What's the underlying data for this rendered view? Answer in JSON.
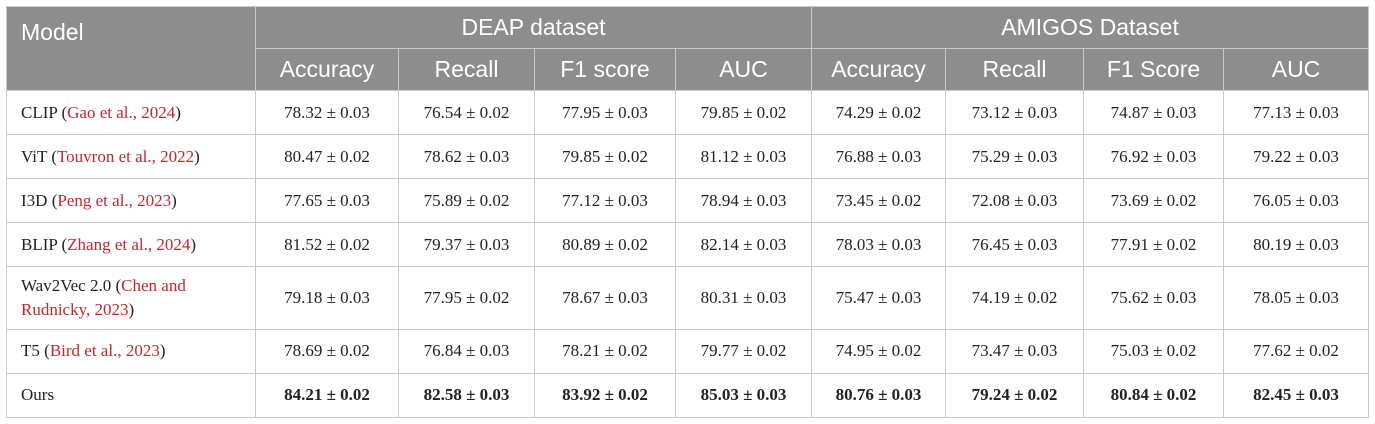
{
  "header": {
    "model": "Model",
    "groups": [
      "DEAP dataset",
      "AMIGOS Dataset"
    ],
    "metrics": [
      "Accuracy",
      "Recall",
      "F1 score",
      "AUC",
      "Accuracy",
      "Recall",
      "F1 Score",
      "AUC"
    ]
  },
  "rows": [
    {
      "name": "CLIP",
      "cite": "Gao et al., 2024",
      "close": ")",
      "values": [
        "78.32 ± 0.03",
        "76.54 ± 0.02",
        "77.95 ± 0.03",
        "79.85 ± 0.02",
        "74.29 ± 0.02",
        "73.12 ± 0.03",
        "74.87 ± 0.03",
        "77.13 ± 0.03"
      ]
    },
    {
      "name": "ViT",
      "cite": "Touvron et al., 2022",
      "close": ")",
      "values": [
        "80.47 ± 0.02",
        "78.62 ± 0.03",
        "79.85 ± 0.02",
        "81.12 ± 0.03",
        "76.88 ± 0.03",
        "75.29 ± 0.03",
        "76.92 ± 0.03",
        "79.22 ± 0.03"
      ]
    },
    {
      "name": "I3D",
      "cite": "Peng et al., 2023",
      "close": ")",
      "values": [
        "77.65 ± 0.03",
        "75.89 ± 0.02",
        "77.12 ± 0.03",
        "78.94 ± 0.03",
        "73.45 ± 0.02",
        "72.08 ± 0.03",
        "73.69 ± 0.02",
        "76.05 ± 0.03"
      ]
    },
    {
      "name": "BLIP",
      "cite": "Zhang et al., 2024",
      "close": ")",
      "values": [
        "81.52 ± 0.02",
        "79.37 ± 0.03",
        "80.89 ± 0.02",
        "82.14 ± 0.03",
        "78.03 ± 0.03",
        "76.45 ± 0.03",
        "77.91 ± 0.02",
        "80.19 ± 0.03"
      ]
    },
    {
      "name": "Wav2Vec 2.0",
      "cite_line1": "Chen and",
      "cite_line2": "Rudnicky, 2023",
      "close": ")",
      "values": [
        "79.18 ± 0.03",
        "77.95 ± 0.02",
        "78.67 ± 0.03",
        "80.31 ± 0.03",
        "75.47 ± 0.03",
        "74.19 ± 0.02",
        "75.62 ± 0.03",
        "78.05 ± 0.03"
      ]
    },
    {
      "name": "T5",
      "cite": "Bird et al., 2023",
      "close": ")",
      "values": [
        "78.69 ± 0.02",
        "76.84 ± 0.03",
        "78.21 ± 0.02",
        "79.77 ± 0.02",
        "74.95 ± 0.02",
        "73.47 ± 0.03",
        "75.03 ± 0.02",
        "77.62 ± 0.02"
      ]
    },
    {
      "name": "Ours",
      "values": [
        "84.21 ± 0.02",
        "82.58 ± 0.03",
        "83.92 ± 0.02",
        "85.03 ± 0.03",
        "80.76 ± 0.03",
        "79.24 ± 0.02",
        "80.84 ± 0.02",
        "82.45 ± 0.03"
      ]
    }
  ],
  "colors": {
    "header_bg": "#8d8d8d",
    "header_text": "#ffffff",
    "citation": "#c0282d",
    "border": "#c9c9c9"
  }
}
